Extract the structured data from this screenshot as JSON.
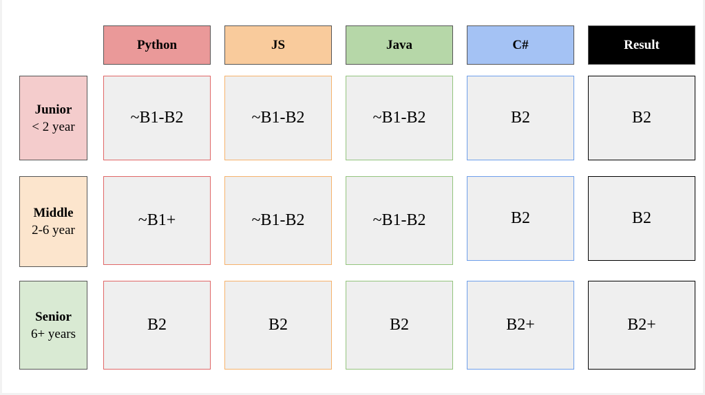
{
  "columns": [
    {
      "label": "Python",
      "fill": "#ea9999",
      "border": "#e06666"
    },
    {
      "label": "JS",
      "fill": "#f9cb9c",
      "border": "#f6b26b"
    },
    {
      "label": "Java",
      "fill": "#b6d7a8",
      "border": "#93c47d"
    },
    {
      "label": "C#",
      "fill": "#a4c2f4",
      "border": "#6d9eeb"
    },
    {
      "label": "Result",
      "fill": "#000000",
      "border": "#000000"
    }
  ],
  "rows": [
    {
      "role": "Junior",
      "years": "< 2 year",
      "fill": "#f4cccc",
      "values": [
        "~B1-B2",
        "~B1-B2",
        "~B1-B2",
        "B2",
        "B2"
      ]
    },
    {
      "role": "Middle",
      "years": "2-6 year",
      "fill": "#fce5cd",
      "values": [
        "~B1+",
        "~B1-B2",
        "~B1-B2",
        "B2",
        "B2"
      ]
    },
    {
      "role": "Senior",
      "years": "6+ years",
      "fill": "#d9ead3",
      "values": [
        "B2",
        "B2",
        "B2",
        "B2+",
        "B2+"
      ]
    }
  ]
}
